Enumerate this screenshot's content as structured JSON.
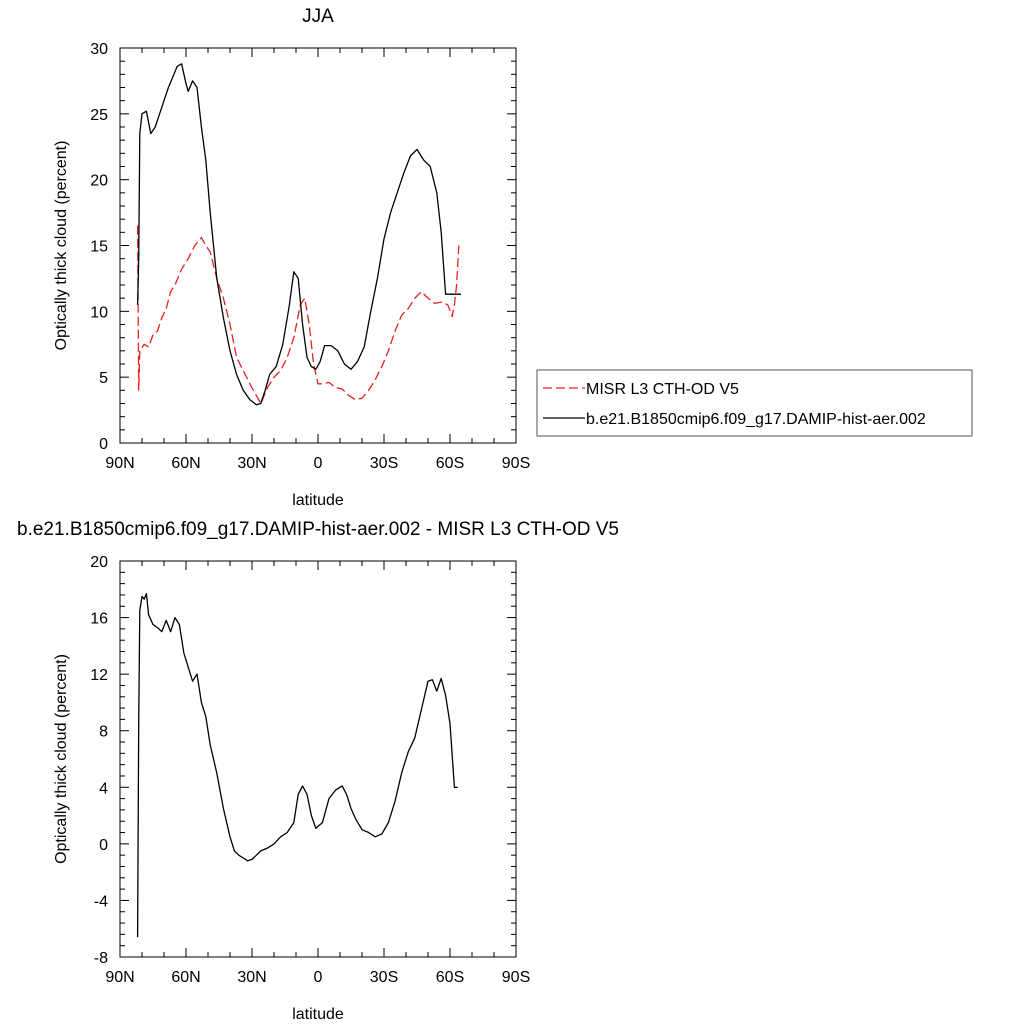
{
  "chart_data": [
    {
      "type": "line",
      "title": "JJA",
      "xlabel": "latitude",
      "ylabel": "Optically thick cloud (percent)",
      "xlim": [
        90,
        -90
      ],
      "ylim": [
        0,
        30
      ],
      "x_ticks": [
        90,
        60,
        30,
        0,
        -30,
        -60,
        -90
      ],
      "x_tick_labels": [
        "90N",
        "60N",
        "30N",
        "0",
        "30S",
        "60S",
        "90S"
      ],
      "y_ticks": [
        0,
        5,
        10,
        15,
        20,
        25,
        30
      ],
      "y_tick_labels": [
        "0",
        "5",
        "10",
        "15",
        "20",
        "25",
        "30"
      ],
      "grid": false,
      "legend_position": "right",
      "series": [
        {
          "name": "MISR L3 CTH-OD V5",
          "color": "#e8201e",
          "style": "dashed",
          "x": [
            82,
            81.5,
            81,
            79,
            77,
            75,
            73,
            71,
            69,
            67,
            65,
            62,
            59,
            56,
            53,
            51,
            49,
            46,
            43,
            40,
            37,
            34,
            31,
            28,
            26,
            23,
            20,
            17,
            14,
            11,
            8,
            6,
            4,
            2,
            0,
            -2,
            -5,
            -8,
            -11,
            -14,
            -17,
            -20,
            -23,
            -26,
            -29,
            -32,
            -35,
            -38,
            -41,
            -44,
            -47,
            -50,
            -53,
            -56,
            -59,
            -61,
            -62,
            -63,
            -64
          ],
          "y": [
            16.5,
            4,
            7,
            7.5,
            7.3,
            8.2,
            8.5,
            9.5,
            10.2,
            11.5,
            12,
            13.2,
            14,
            15,
            15.6,
            15,
            14.5,
            12.5,
            11,
            9,
            6.5,
            5.5,
            4.5,
            3.6,
            3,
            4.2,
            5,
            5.5,
            6.5,
            8,
            10.5,
            11,
            9,
            6,
            4.5,
            4.5,
            4.6,
            4.2,
            4.1,
            3.6,
            3.3,
            3.4,
            4,
            4.8,
            5.8,
            7,
            8.5,
            9.7,
            10.2,
            11,
            11.5,
            11,
            10.6,
            10.7,
            10.5,
            9.6,
            10.5,
            12,
            15
          ]
        },
        {
          "name": "b.e21.B1850cmip6.f09_g17.DAMIP-hist-aer.002",
          "color": "#000000",
          "style": "solid",
          "x": [
            82,
            81.5,
            81,
            80,
            78,
            76,
            74,
            72,
            70,
            68,
            66,
            64,
            62,
            60,
            59,
            57,
            55,
            53,
            51,
            49,
            46,
            43,
            40,
            37,
            34,
            31,
            28,
            26,
            24,
            22,
            19,
            16,
            13,
            11,
            9,
            7,
            5,
            3,
            1,
            -1,
            -3,
            -6,
            -9,
            -12,
            -15,
            -18,
            -21,
            -24,
            -27,
            -30,
            -33,
            -36,
            -39,
            -42,
            -45,
            -48,
            -51,
            -54,
            -56,
            -58,
            -60,
            -62,
            -63.5,
            -65
          ],
          "y": [
            10.5,
            14,
            23.5,
            25,
            25.2,
            23.5,
            24,
            25,
            26,
            27,
            27.8,
            28.6,
            28.8,
            27.3,
            26.7,
            27.5,
            27,
            24,
            21.5,
            17.5,
            12.5,
            9.5,
            7,
            5.2,
            4,
            3.3,
            2.9,
            3,
            4,
            5.2,
            5.8,
            7.5,
            10.5,
            13,
            12.5,
            9,
            6.5,
            5.8,
            5.6,
            6.2,
            7.4,
            7.4,
            7,
            6,
            5.6,
            6.2,
            7.3,
            10,
            12.5,
            15.5,
            17.5,
            19,
            20.5,
            21.8,
            22.3,
            21.5,
            21,
            19,
            16,
            11.3,
            11.3,
            11.3,
            11.3,
            11.3
          ]
        }
      ]
    },
    {
      "type": "line",
      "title": "b.e21.B1850cmip6.f09_g17.DAMIP-hist-aer.002 - MISR L3 CTH-OD V5",
      "xlabel": "latitude",
      "ylabel": "Optically thick cloud (percent)",
      "xlim": [
        90,
        -90
      ],
      "ylim": [
        -8,
        20
      ],
      "x_ticks": [
        90,
        60,
        30,
        0,
        -30,
        -60,
        -90
      ],
      "x_tick_labels": [
        "90N",
        "60N",
        "30N",
        "0",
        "30S",
        "60S",
        "90S"
      ],
      "y_ticks": [
        -8,
        -4,
        0,
        4,
        8,
        12,
        16,
        20
      ],
      "y_tick_labels": [
        "-8",
        "-4",
        "0",
        "4",
        "8",
        "12",
        "16",
        "20"
      ],
      "grid": false,
      "series": [
        {
          "color": "#000000",
          "style": "solid",
          "x": [
            82,
            81.5,
            81,
            80,
            79,
            78,
            77,
            75,
            73,
            71,
            69,
            67,
            65,
            63,
            61,
            59,
            57,
            55,
            53,
            51,
            49,
            46,
            43,
            40,
            38,
            36,
            34,
            32,
            30,
            28,
            26,
            23,
            20,
            17,
            14,
            11,
            9,
            7,
            5,
            3,
            1,
            -2,
            -5,
            -8,
            -11,
            -13,
            -15,
            -17,
            -20,
            -23,
            -26,
            -29,
            -32,
            -35,
            -38,
            -41,
            -44,
            -47,
            -50,
            -52,
            -54,
            -56,
            -58,
            -60,
            -62,
            -63.5
          ],
          "y": [
            -6.6,
            8.5,
            16.5,
            17.5,
            17.3,
            17.7,
            16.2,
            15.5,
            15.3,
            15,
            15.8,
            15,
            16,
            15.5,
            13.5,
            12.5,
            11.5,
            12,
            10,
            9,
            7,
            5,
            2.5,
            0.5,
            -0.5,
            -0.8,
            -1,
            -1.2,
            -1.1,
            -0.8,
            -0.5,
            -0.3,
            0,
            0.5,
            0.8,
            1.5,
            3.5,
            4.1,
            3.5,
            2,
            1.1,
            1.5,
            3.2,
            3.8,
            4.1,
            3.5,
            2.5,
            1.8,
            1,
            0.8,
            0.5,
            0.7,
            1.5,
            3,
            5,
            6.5,
            7.5,
            9.5,
            11.5,
            11.6,
            10.8,
            11.7,
            10.5,
            8.5,
            4,
            4
          ]
        }
      ]
    }
  ]
}
